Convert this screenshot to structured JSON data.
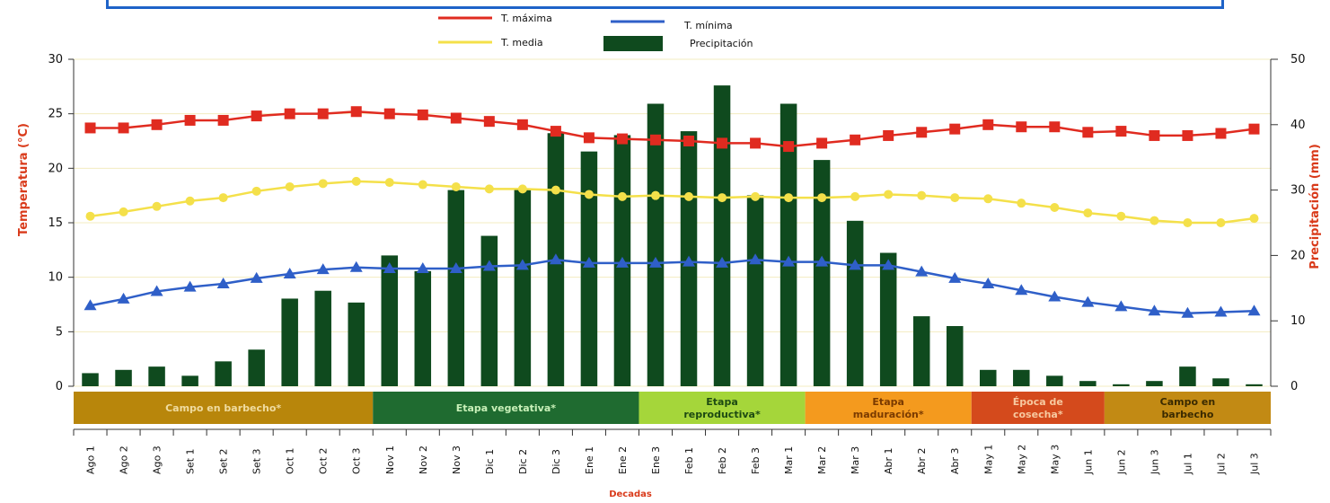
{
  "chart_data": {
    "type": "bar",
    "title": "",
    "xlabel": "Decadas",
    "ylabel_left": "Temperatura (°C)",
    "ylabel_right": "Precipitación (mm)",
    "ylim_left": [
      0,
      30
    ],
    "ylim_right": [
      0,
      50
    ],
    "yticks_left": [
      "0",
      "5",
      "10",
      "15",
      "20",
      "25",
      "30"
    ],
    "yticks_right": [
      "0",
      "10",
      "20",
      "30",
      "40",
      "50"
    ],
    "legend_placement": "top-center",
    "categories": [
      "Ago 1",
      "Ago 2",
      "Ago 3",
      "Set 1",
      "Set 2",
      "Set 3",
      "Oct 1",
      "Oct 2",
      "Oct 3",
      "Nov 1",
      "Nov 2",
      "Nov 3",
      "Dic 1",
      "Dic 2",
      "Dic 3",
      "Ene 1",
      "Ene 2",
      "Ene 3",
      "Feb 1",
      "Feb 2",
      "Feb 3",
      "Mar 1",
      "Mar 2",
      "Mar 3",
      "Abr 1",
      "Abr 2",
      "Abr 3",
      "May 1",
      "May 2",
      "May 3",
      "Jun 1",
      "Jun 2",
      "Jun 3",
      "Jul 1",
      "Jul 2",
      "Jul 3"
    ],
    "series": [
      {
        "name": "Precipitación",
        "type": "bar",
        "axis": "right",
        "color": "#0f4a1e",
        "values": [
          2,
          2.5,
          3,
          1.6,
          3.8,
          5.6,
          13.4,
          14.6,
          12.8,
          20,
          17.6,
          30,
          23,
          30.2,
          38.7,
          35.9,
          38.4,
          43.2,
          39,
          46,
          29.2,
          43.2,
          34.6,
          25.3,
          20.4,
          10.7,
          9.2,
          2.5,
          2.5,
          1.6,
          0.8,
          0.3,
          0.8,
          3,
          1.2,
          0.3
        ]
      },
      {
        "name": "T. máxima",
        "type": "line",
        "axis": "left",
        "color": "#e02b20",
        "marker": "square",
        "values": [
          23.7,
          23.7,
          24.0,
          24.4,
          24.4,
          24.8,
          25.0,
          25.0,
          25.2,
          25.0,
          24.9,
          24.6,
          24.3,
          24.0,
          23.4,
          22.8,
          22.7,
          22.6,
          22.5,
          22.3,
          22.3,
          22.0,
          22.3,
          22.6,
          23.0,
          23.3,
          23.6,
          24.0,
          23.8,
          23.8,
          23.3,
          23.4,
          23.0,
          23.0,
          23.2,
          23.6
        ]
      },
      {
        "name": "T. media",
        "type": "line",
        "axis": "left",
        "color": "#f4e04a",
        "marker": "circle",
        "values": [
          15.6,
          16.0,
          16.5,
          17.0,
          17.3,
          17.9,
          18.3,
          18.6,
          18.8,
          18.7,
          18.5,
          18.3,
          18.1,
          18.1,
          18.0,
          17.6,
          17.4,
          17.5,
          17.4,
          17.3,
          17.4,
          17.3,
          17.3,
          17.4,
          17.6,
          17.5,
          17.3,
          17.2,
          16.8,
          16.4,
          15.9,
          15.6,
          15.2,
          15.0,
          15.0,
          15.4
        ]
      },
      {
        "name": "T. mínima",
        "type": "line",
        "axis": "left",
        "color": "#2f5fc8",
        "marker": "triangle",
        "values": [
          7.4,
          8.0,
          8.7,
          9.1,
          9.4,
          9.9,
          10.3,
          10.7,
          10.9,
          10.8,
          10.8,
          10.8,
          11.0,
          11.1,
          11.6,
          11.3,
          11.3,
          11.3,
          11.4,
          11.3,
          11.6,
          11.4,
          11.4,
          11.1,
          11.1,
          10.5,
          9.9,
          9.4,
          8.8,
          8.2,
          7.7,
          7.3,
          6.9,
          6.7,
          6.8,
          6.9
        ]
      }
    ],
    "stages": [
      {
        "label": "Campo en barbecho*",
        "from": 0,
        "to": 9,
        "fill": "#b8860b",
        "text": "#f0dca0"
      },
      {
        "label": "Etapa vegetativa*",
        "from": 9,
        "to": 17,
        "fill": "#1f6b30",
        "text": "#c8f0b8"
      },
      {
        "label": "Etapa reproductiva*",
        "from": 17,
        "to": 22,
        "fill": "#a5d63a",
        "text": "#1d4a12"
      },
      {
        "label": "Etapa maduración*",
        "from": 22,
        "to": 27,
        "fill": "#f49a1e",
        "text": "#7a3a00"
      },
      {
        "label": "Época de cosecha*",
        "from": 27,
        "to": 31,
        "fill": "#d44a1c",
        "text": "#f7c9a0"
      },
      {
        "label": "Campo en barbecho",
        "from": 31,
        "to": 36,
        "fill": "#c28a14",
        "text": "#3a2a00"
      }
    ]
  },
  "legend": {
    "tmax": "T. máxima",
    "tmin": "T. mínima",
    "tmed": "T. media",
    "precip": "Precipitación"
  }
}
